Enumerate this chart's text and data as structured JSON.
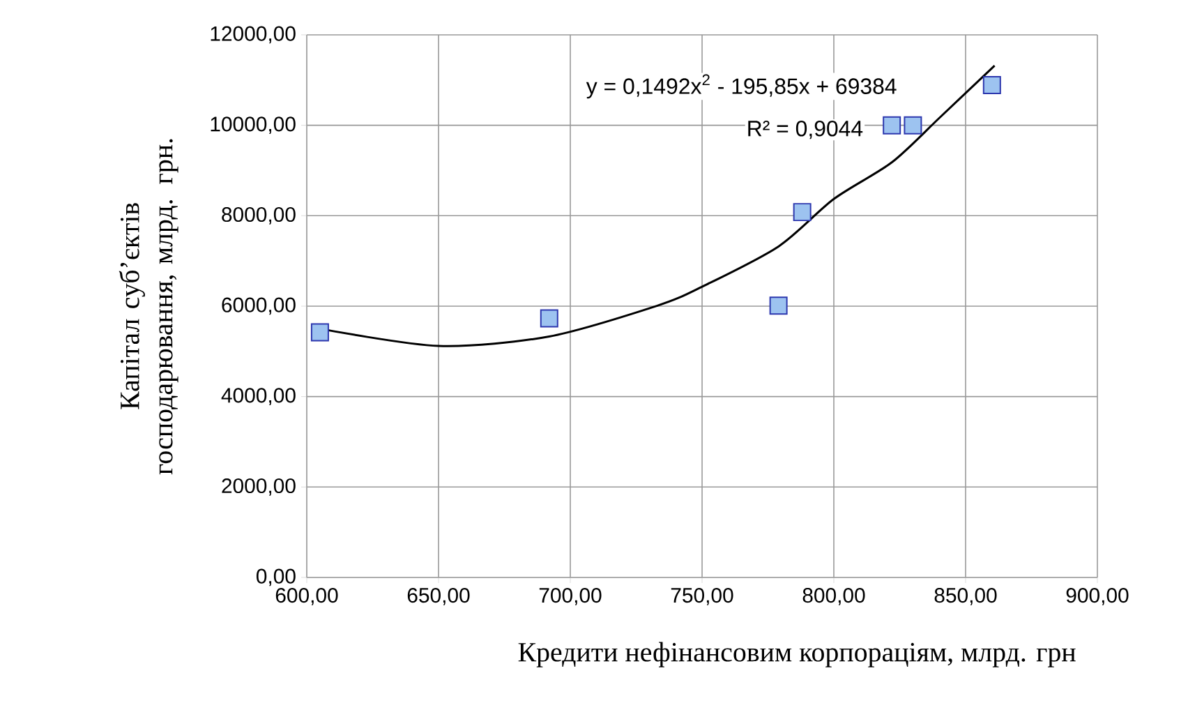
{
  "chart_data": {
    "type": "scatter",
    "xlabel": "Кредити нефінансовим корпораціям, млрд. грн",
    "ylabel": "Капітал суб’єктів господарювання, млрд. грн.",
    "xlim": [
      600,
      900
    ],
    "ylim": [
      0,
      12000
    ],
    "xticks": [
      {
        "value": 600,
        "label": "600,00"
      },
      {
        "value": 650,
        "label": "650,00"
      },
      {
        "value": 700,
        "label": "700,00"
      },
      {
        "value": 750,
        "label": "750,00"
      },
      {
        "value": 800,
        "label": "800,00"
      },
      {
        "value": 850,
        "label": "850,00"
      },
      {
        "value": 900,
        "label": "900,00"
      }
    ],
    "yticks": [
      {
        "value": 0,
        "label": "0,00"
      },
      {
        "value": 2000,
        "label": "2000,00"
      },
      {
        "value": 4000,
        "label": "4000,00"
      },
      {
        "value": 6000,
        "label": "6000,00"
      },
      {
        "value": 8000,
        "label": "8000,00"
      },
      {
        "value": 10000,
        "label": "10000,00"
      },
      {
        "value": 12000,
        "label": "12000,00"
      }
    ],
    "grid": true,
    "marker": "square",
    "series": [
      {
        "color": "#9dc3f0",
        "x": [
          605,
          692,
          779,
          788,
          822,
          830,
          860
        ],
        "values": [
          5420,
          5730,
          6010,
          8080,
          10000,
          10000,
          10890
        ]
      },
      {
        "type": "line",
        "color": "#000000",
        "marker": "none",
        "x": [
          605,
          650,
          692,
          733,
          750,
          779,
          800,
          822,
          840,
          861
        ],
        "values": [
          5500,
          5120,
          5330,
          6010,
          6430,
          7320,
          8370,
          9180,
          10160,
          11320
        ]
      }
    ],
    "annotations": [
      "y = 0,1492x$^{2}$ - 195,85x + 69384",
      "R² = 0,9044"
    ]
  }
}
